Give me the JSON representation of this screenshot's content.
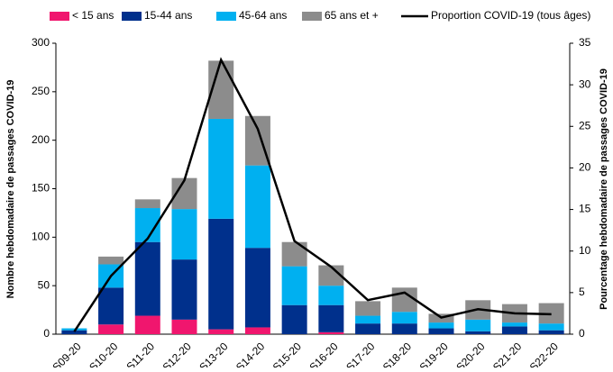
{
  "chart_data": {
    "type": "bar",
    "stacked": true,
    "y_label": "Nombre hebdomadaire de passages COVID-19",
    "y2_label": "Pourcentage hebdomadaire de passages COVID-19",
    "categories": [
      "S09-20",
      "S10-20",
      "S11-20",
      "S12-20",
      "S13-20",
      "S14-20",
      "S15-20",
      "S16-20",
      "S17-20",
      "S18-20",
      "S19-20",
      "S20-20",
      "S21-20",
      "S22-20"
    ],
    "series": [
      {
        "name": "< 15 ans",
        "color": "#f0166e",
        "values": [
          0,
          10,
          19,
          15,
          5,
          7,
          0,
          2,
          0,
          0,
          0,
          0,
          0,
          0
        ]
      },
      {
        "name": "15-44 ans",
        "color": "#00308c",
        "values": [
          4,
          38,
          76,
          62,
          114,
          82,
          30,
          28,
          11,
          11,
          6,
          3,
          8,
          4
        ]
      },
      {
        "name": "45-64 ans",
        "color": "#00b0f0",
        "values": [
          2,
          24,
          35,
          52,
          103,
          85,
          40,
          20,
          8,
          12,
          6,
          12,
          4,
          7
        ]
      },
      {
        "name": "65 ans et +",
        "color": "#8c8c8c",
        "values": [
          0,
          8,
          9,
          32,
          60,
          51,
          25,
          21,
          15,
          25,
          9,
          20,
          19,
          21
        ]
      },
      {
        "name": "Proportion COVID-19 (tous âges)",
        "color": "#000000",
        "type": "line",
        "axis": "y2",
        "values": [
          0.3,
          7,
          11.5,
          18.5,
          33,
          24.7,
          11.2,
          8.1,
          4.1,
          5,
          2,
          3,
          2.5,
          2.4
        ]
      }
    ],
    "ylim": [
      0,
      300
    ],
    "yticks": [
      0,
      50,
      100,
      150,
      200,
      250,
      300
    ],
    "y2lim": [
      0,
      35
    ],
    "y2ticks": [
      0,
      5,
      10,
      15,
      20,
      25,
      30,
      35
    ],
    "legend": "top"
  }
}
